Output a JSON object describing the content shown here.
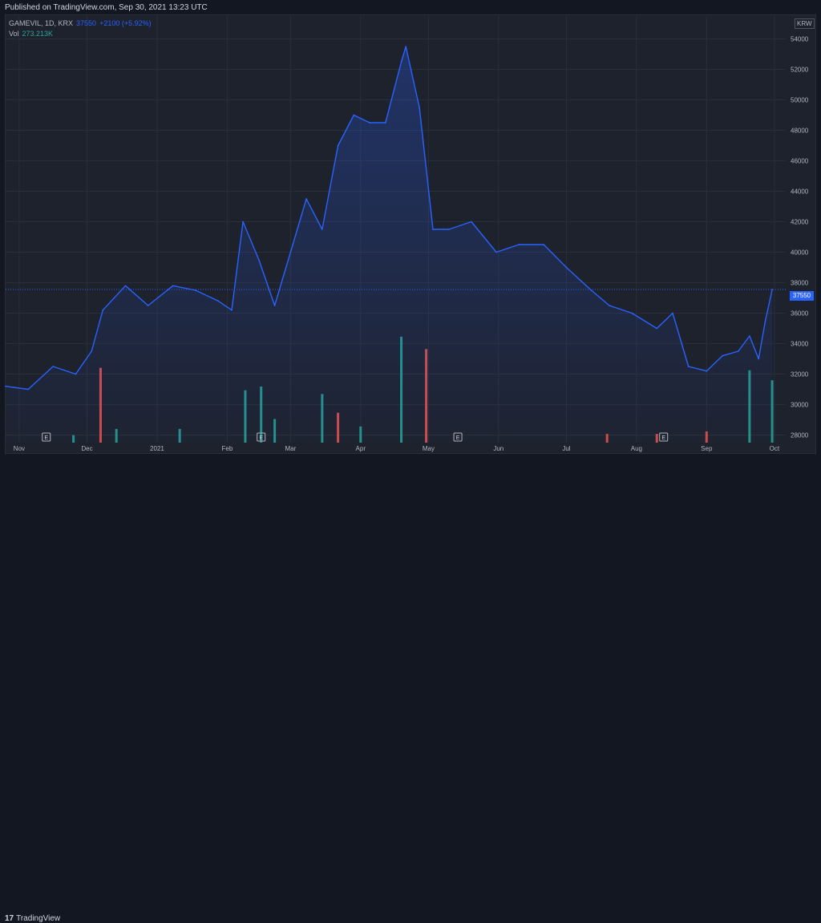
{
  "header": {
    "published": "Published on TradingView.com, Sep 30, 2021 13:23 UTC"
  },
  "legend": {
    "symbol": "GAMEVIL, 1D, KRX",
    "price": "37550",
    "change": "+2100 (+5.92%)",
    "volume_label": "Vol",
    "volume_value": "273.213K"
  },
  "currency": "KRW",
  "last_price_label": "37550",
  "footer": {
    "logo_mark": "17",
    "logo_text": "TradingView"
  },
  "colors": {
    "line": "#2962ff",
    "up_volume": "#26a69a",
    "down_volume": "#ef5350",
    "background": "#1e222d"
  },
  "chart_data": {
    "type": "area",
    "series": [
      {
        "name": "GAMEVIL",
        "x": [
          "2020-10-26",
          "2020-11-05",
          "2020-11-16",
          "2020-11-26",
          "2020-12-03",
          "2020-12-08",
          "2020-12-18",
          "2020-12-28",
          "2021-01-08",
          "2021-01-18",
          "2021-01-28",
          "2021-02-03",
          "2021-02-08",
          "2021-02-15",
          "2021-02-22",
          "2021-03-02",
          "2021-03-08",
          "2021-03-15",
          "2021-03-22",
          "2021-03-29",
          "2021-04-05",
          "2021-04-12",
          "2021-04-19",
          "2021-04-21",
          "2021-04-27",
          "2021-05-03",
          "2021-05-10",
          "2021-05-20",
          "2021-05-31",
          "2021-06-10",
          "2021-06-21",
          "2021-07-01",
          "2021-07-12",
          "2021-07-20",
          "2021-07-30",
          "2021-08-10",
          "2021-08-17",
          "2021-08-24",
          "2021-09-01",
          "2021-09-08",
          "2021-09-15",
          "2021-09-20",
          "2021-09-24",
          "2021-09-27",
          "2021-09-30"
        ],
        "values": [
          31200,
          31000,
          32500,
          32000,
          33500,
          36200,
          37800,
          36500,
          37800,
          37500,
          36800,
          36200,
          42000,
          39500,
          36500,
          40500,
          43500,
          41500,
          47000,
          49000,
          48500,
          48500,
          52500,
          53500,
          49500,
          41500,
          41500,
          42000,
          40000,
          40500,
          40500,
          39000,
          37500,
          36500,
          36000,
          35000,
          36000,
          32500,
          32200,
          33200,
          33500,
          34500,
          33000,
          35500,
          37550
        ]
      }
    ],
    "volume": {
      "x": [
        "2020-11-25",
        "2020-12-07",
        "2020-12-14",
        "2021-01-11",
        "2021-02-09",
        "2021-02-16",
        "2021-02-22",
        "2021-03-15",
        "2021-03-22",
        "2021-04-01",
        "2021-04-19",
        "2021-04-30",
        "2021-07-19",
        "2021-08-10",
        "2021-09-01",
        "2021-09-20",
        "2021-09-30"
      ],
      "values": [
        30,
        300,
        55,
        55,
        210,
        225,
        95,
        195,
        120,
        65,
        425,
        375,
        35,
        35,
        45,
        290,
        250
      ],
      "directions": [
        "up",
        "down",
        "up",
        "up",
        "up",
        "up",
        "up",
        "up",
        "down",
        "up",
        "up",
        "down",
        "down",
        "down",
        "down",
        "up",
        "up"
      ]
    },
    "ylim": [
      27500,
      55500
    ],
    "yticks": [
      "54000",
      "52000",
      "50000",
      "48000",
      "46000",
      "44000",
      "42000",
      "40000",
      "38000",
      "36000",
      "34000",
      "32000",
      "30000",
      "28000"
    ],
    "xticks": [
      "Nov",
      "Dec",
      "2021",
      "Feb",
      "Mar",
      "Apr",
      "May",
      "Jun",
      "Jul",
      "Aug",
      "Sep",
      "Oct"
    ],
    "earnings_markers": [
      "E",
      "E",
      "E",
      "E"
    ],
    "grid": true
  }
}
